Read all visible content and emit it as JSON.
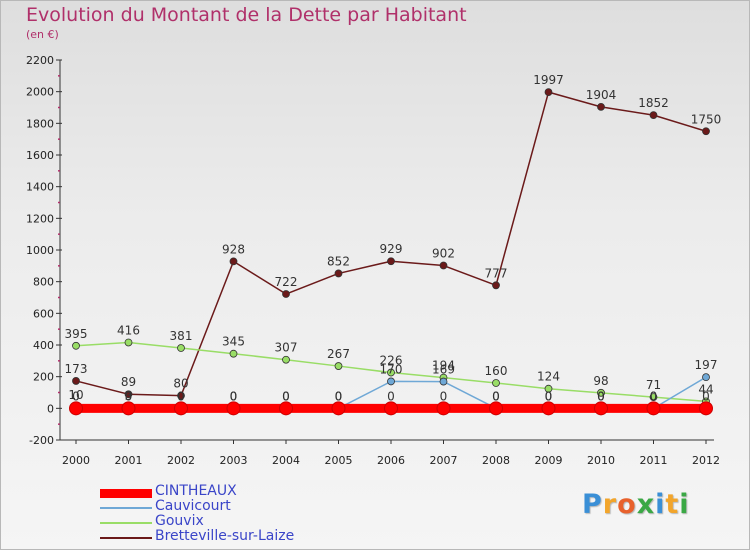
{
  "title": "Evolution du Montant de la Dette par Habitant",
  "subtitle": "(en €)",
  "logo_text": "Proxiti",
  "chart_data": {
    "type": "line",
    "x": [
      "2000",
      "2001",
      "2002",
      "2003",
      "2004",
      "2005",
      "2006",
      "2007",
      "2008",
      "2009",
      "2010",
      "2011",
      "2012"
    ],
    "ylim": [
      -200,
      2200
    ],
    "yticks": [
      -200,
      0,
      200,
      400,
      600,
      800,
      1000,
      1200,
      1400,
      1600,
      1800,
      2000,
      2200
    ],
    "grid": false,
    "legend_position": "bottom-left",
    "series": [
      {
        "name": "CINTHEAUX",
        "color": "#ff0000",
        "values": [
          0,
          0,
          0,
          0,
          0,
          0,
          0,
          0,
          0,
          0,
          0,
          0,
          0
        ],
        "labels": [
          "0",
          "0",
          "0",
          "0",
          "0",
          "0",
          "0",
          "0",
          "0",
          "0",
          "0",
          "0",
          "0"
        ]
      },
      {
        "name": "Cauvicourt",
        "color": "#6fa8d6",
        "values": [
          10,
          3,
          0,
          0,
          0,
          0,
          170,
          169,
          0,
          0,
          0,
          0,
          197
        ],
        "labels": [
          "10",
          "3",
          "0",
          "0",
          "0",
          "0",
          "170",
          "169",
          "0",
          "0",
          "0",
          "0",
          "197"
        ]
      },
      {
        "name": "Gouvix",
        "color": "#99dd66",
        "values": [
          395,
          416,
          381,
          345,
          307,
          267,
          226,
          194,
          160,
          124,
          98,
          71,
          44
        ],
        "labels": [
          "395",
          "416",
          "381",
          "345",
          "307",
          "267",
          "226",
          "194",
          "160",
          "124",
          "98",
          "71",
          "44"
        ]
      },
      {
        "name": "Bretteville-sur-Laize",
        "color": "#6b1a1a",
        "values": [
          173,
          89,
          80,
          928,
          722,
          852,
          929,
          902,
          777,
          1997,
          1904,
          1852,
          1750
        ],
        "labels": [
          "173",
          "89",
          "80",
          "928",
          "722",
          "852",
          "929",
          "902",
          "777",
          "1997",
          "1904",
          "1852",
          "1750"
        ]
      }
    ]
  }
}
